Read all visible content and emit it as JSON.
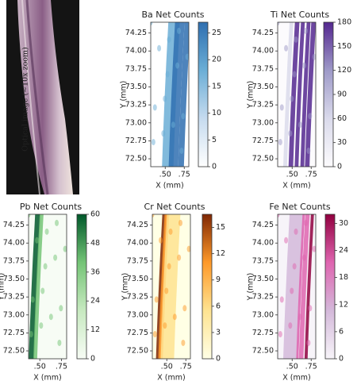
{
  "optical_image": {
    "label": "Optical image (~10x zoom)"
  },
  "chart_data": [
    {
      "type": "heatmap",
      "title": "Ba Net Counts",
      "xlabel": "X (mm)",
      "ylabel": "Y (mm)",
      "xlim": [
        0.31,
        0.81
      ],
      "xticks": [
        {
          "value": 0.5,
          "label": ".50"
        },
        {
          "value": 0.75,
          "label": ".75"
        }
      ],
      "ylim": [
        72.39,
        74.4
      ],
      "yticks": [
        {
          "value": 72.5,
          "label": "72.50"
        },
        72.75,
        {
          "value": 73,
          "label": "73.00"
        },
        73.25,
        {
          "value": 73.5,
          "label": "73.50"
        },
        73.75,
        {
          "value": 74,
          "label": "74.00"
        },
        74.25
      ],
      "zlim": [
        0,
        27
      ],
      "zticks": [
        0,
        5,
        10,
        15,
        20,
        25
      ],
      "colors": [
        "#ffffff",
        "#c6dbef",
        "#6baed6",
        "#2f6fb0"
      ]
    },
    {
      "type": "heatmap",
      "title": "Ti Net Counts",
      "xlabel": "X (mm)",
      "ylabel": "Y (mm)",
      "xlim": [
        0.31,
        0.81
      ],
      "xticks": [
        {
          "value": 0.5,
          "label": ".50"
        },
        {
          "value": 0.75,
          "label": ".75"
        }
      ],
      "ylim": [
        72.39,
        74.4
      ],
      "yticks": [
        {
          "value": 72.5,
          "label": "72.50"
        },
        72.75,
        {
          "value": 73,
          "label": "73.00"
        },
        73.25,
        {
          "value": 73.5,
          "label": "73.50"
        },
        73.75,
        {
          "value": 74,
          "label": "74.00"
        },
        74.25
      ],
      "zlim": [
        0,
        180
      ],
      "zticks": [
        0,
        30,
        60,
        90,
        120,
        150,
        180
      ],
      "colors": [
        "#fcfbfd",
        "#dadaeb",
        "#9e9ac8",
        "#54278f"
      ]
    },
    {
      "type": "heatmap",
      "title": "Pb Net Counts",
      "xlabel": "X (mm)",
      "ylabel": "Y (mm)",
      "xlim": [
        0.37,
        0.81
      ],
      "xticks": [
        {
          "value": 0.5,
          "label": ".50"
        },
        {
          "value": 0.75,
          "label": ".75"
        }
      ],
      "ylim": [
        72.39,
        74.4
      ],
      "yticks": [
        {
          "value": 72.5,
          "label": "72.50"
        },
        72.75,
        {
          "value": 73,
          "label": "73.00"
        },
        73.25,
        {
          "value": 73.5,
          "label": "73.50"
        },
        73.75,
        {
          "value": 74,
          "label": "74.00"
        },
        74.25
      ],
      "zlim": [
        0,
        60
      ],
      "zticks": [
        0,
        12,
        24,
        36,
        48,
        60
      ],
      "colors": [
        "#f7fcf5",
        "#c7e9c0",
        "#74c476",
        "#00582a"
      ]
    },
    {
      "type": "heatmap",
      "title": "Cr Net Counts",
      "xlabel": "X (mm)",
      "ylabel": "Y (mm)",
      "xlim": [
        0.31,
        0.81
      ],
      "xticks": [
        {
          "value": 0.5,
          "label": ".50"
        },
        {
          "value": 0.75,
          "label": ".75"
        }
      ],
      "ylim": [
        72.39,
        74.4
      ],
      "yticks": [
        {
          "value": 72.5,
          "label": "72.50"
        },
        72.75,
        {
          "value": 73,
          "label": "73.00"
        },
        73.25,
        {
          "value": 73.5,
          "label": "73.50"
        },
        73.75,
        {
          "value": 74,
          "label": "74.00"
        },
        74.25
      ],
      "zlim": [
        0,
        16.5
      ],
      "zticks": [
        0,
        3,
        6,
        9,
        12,
        15
      ],
      "colors": [
        "#ffffe5",
        "#fee391",
        "#fe9929",
        "#7f2704"
      ]
    },
    {
      "type": "heatmap",
      "title": "Fe Net Counts",
      "xlabel": "X (mm)",
      "ylabel": "Y (mm)",
      "xlim": [
        0.31,
        0.81
      ],
      "xticks": [
        {
          "value": 0.5,
          "label": ".50"
        },
        {
          "value": 0.75,
          "label": ".75"
        }
      ],
      "ylim": [
        72.39,
        74.4
      ],
      "yticks": [
        {
          "value": 72.5,
          "label": "72.50"
        },
        72.75,
        {
          "value": 73,
          "label": "73.00"
        },
        73.25,
        {
          "value": 73.5,
          "label": "73.50"
        },
        73.75,
        {
          "value": 74,
          "label": "74.00"
        },
        74.25
      ],
      "zlim": [
        0,
        32
      ],
      "zticks": [
        0,
        6,
        12,
        18,
        24,
        30
      ],
      "colors": [
        "#f7f4f9",
        "#d4b9da",
        "#df65b0",
        "#91003f"
      ]
    }
  ]
}
